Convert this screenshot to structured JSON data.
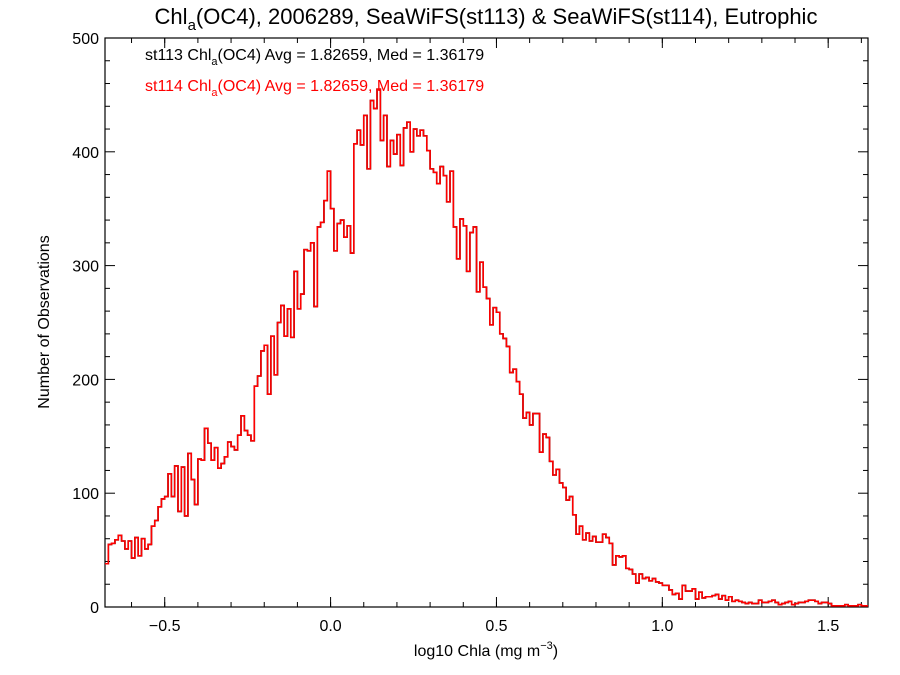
{
  "chart_data": {
    "type": "histogram",
    "title": {
      "base": "Chl",
      "sub": "a",
      "rest": "(OC4), 2006289, SeaWiFS(st113) & SeaWiFS(st114), Eutrophic"
    },
    "xlabel": {
      "text": "log10 Chla (mg m",
      "sup": "−3",
      "close": ")"
    },
    "ylabel": "Number of Observations",
    "xlim": [
      -0.68,
      1.62
    ],
    "ylim": [
      0,
      500
    ],
    "xticks": [
      -0.5,
      0.0,
      0.5,
      1.0,
      1.5
    ],
    "xtick_labels": [
      "−0.5",
      "0.0",
      "0.5",
      "1.0",
      "1.5"
    ],
    "yticks": [
      0,
      100,
      200,
      300,
      400,
      500
    ],
    "ytick_labels": [
      "0",
      "100",
      "200",
      "300",
      "400",
      "500"
    ],
    "legend": [
      {
        "pre": "st113 Chl",
        "sub": "a",
        "post": "(OC4) Avg = 1.82659, Med = 1.36179",
        "color": "#000000"
      },
      {
        "pre": "st114 Chl",
        "sub": "a",
        "post": "(OC4) Avg = 1.82659, Med = 1.36179",
        "color": "#ff0000"
      }
    ],
    "series": [
      {
        "name": "st113",
        "color": "#000000",
        "bin_start": -0.68,
        "bin_width": 0.01,
        "counts": [
          38,
          55,
          56,
          59,
          63,
          58,
          51,
          58,
          43,
          61,
          45,
          60,
          51,
          55,
          71,
          76,
          88,
          95,
          97,
          117,
          97,
          124,
          84,
          123,
          80,
          135,
          112,
          90,
          130,
          129,
          157,
          144,
          129,
          140,
          122,
          126,
          132,
          145,
          141,
          138,
          151,
          168,
          155,
          151,
          146,
          194,
          203,
          225,
          230,
          187,
          238,
          204,
          250,
          265,
          238,
          262,
          237,
          295,
          262,
          275,
          314,
          313,
          320,
          264,
          334,
          338,
          357,
          383,
          350,
          313,
          337,
          340,
          325,
          335,
          311,
          407,
          419,
          406,
          432,
          385,
          445,
          438,
          455,
          410,
          432,
          387,
          410,
          398,
          415,
          388,
          421,
          426,
          400,
          420,
          414,
          419,
          414,
          401,
          385,
          382,
          372,
          387,
          379,
          356,
          383,
          334,
          306,
          341,
          335,
          295,
          329,
          334,
          277,
          303,
          281,
          271,
          248,
          263,
          259,
          240,
          236,
          229,
          206,
          209,
          198,
          187,
          166,
          171,
          160,
          170,
          170,
          136,
          152,
          149,
          128,
          116,
          121,
          109,
          105,
          94,
          97,
          81,
          64,
          71,
          59,
          65,
          58,
          62,
          57,
          57,
          64,
          61,
          56,
          37,
          45,
          44,
          45,
          34,
          33,
          29,
          21,
          29,
          25,
          26,
          23,
          25,
          22,
          21,
          19,
          19,
          15,
          11,
          12,
          7,
          19,
          14,
          14,
          16,
          7,
          13,
          8,
          9,
          9,
          10,
          11,
          7,
          10,
          6,
          9,
          5,
          6,
          5,
          4,
          3,
          4,
          3,
          3,
          6,
          4,
          4,
          5,
          6,
          4,
          2,
          3,
          4,
          5,
          2,
          3,
          4,
          4,
          5,
          6,
          6,
          5,
          3,
          4,
          4,
          3,
          1,
          1,
          1,
          1,
          2,
          1,
          1,
          1,
          2,
          1,
          1
        ]
      },
      {
        "name": "st114",
        "color": "#ff0000",
        "bin_start": -0.68,
        "bin_width": 0.01,
        "counts": [
          38,
          55,
          56,
          59,
          63,
          58,
          51,
          58,
          43,
          61,
          45,
          60,
          51,
          55,
          71,
          76,
          88,
          95,
          97,
          117,
          97,
          124,
          84,
          123,
          80,
          135,
          112,
          90,
          130,
          129,
          157,
          144,
          129,
          140,
          122,
          126,
          132,
          145,
          141,
          138,
          151,
          168,
          155,
          151,
          146,
          194,
          203,
          225,
          230,
          187,
          238,
          204,
          250,
          265,
          238,
          262,
          237,
          295,
          262,
          275,
          314,
          313,
          320,
          264,
          334,
          338,
          357,
          383,
          350,
          313,
          337,
          340,
          325,
          335,
          311,
          407,
          419,
          406,
          432,
          385,
          445,
          438,
          455,
          410,
          432,
          387,
          410,
          398,
          415,
          388,
          421,
          426,
          400,
          420,
          414,
          419,
          414,
          401,
          385,
          382,
          372,
          387,
          379,
          356,
          383,
          334,
          306,
          341,
          335,
          295,
          329,
          334,
          277,
          303,
          281,
          271,
          248,
          263,
          259,
          240,
          236,
          229,
          206,
          209,
          198,
          187,
          166,
          171,
          160,
          170,
          170,
          136,
          152,
          149,
          128,
          116,
          121,
          109,
          105,
          94,
          97,
          81,
          64,
          71,
          59,
          65,
          58,
          62,
          57,
          57,
          64,
          61,
          56,
          37,
          45,
          44,
          45,
          34,
          33,
          29,
          21,
          29,
          25,
          26,
          23,
          25,
          22,
          21,
          19,
          19,
          15,
          11,
          12,
          7,
          19,
          14,
          14,
          16,
          7,
          13,
          8,
          9,
          9,
          10,
          11,
          7,
          10,
          6,
          9,
          5,
          6,
          5,
          4,
          3,
          4,
          3,
          3,
          6,
          4,
          4,
          5,
          6,
          4,
          2,
          3,
          4,
          5,
          2,
          3,
          4,
          4,
          5,
          6,
          6,
          5,
          3,
          4,
          4,
          3,
          1,
          1,
          1,
          1,
          2,
          1,
          1,
          1,
          2,
          1,
          1
        ]
      }
    ]
  }
}
